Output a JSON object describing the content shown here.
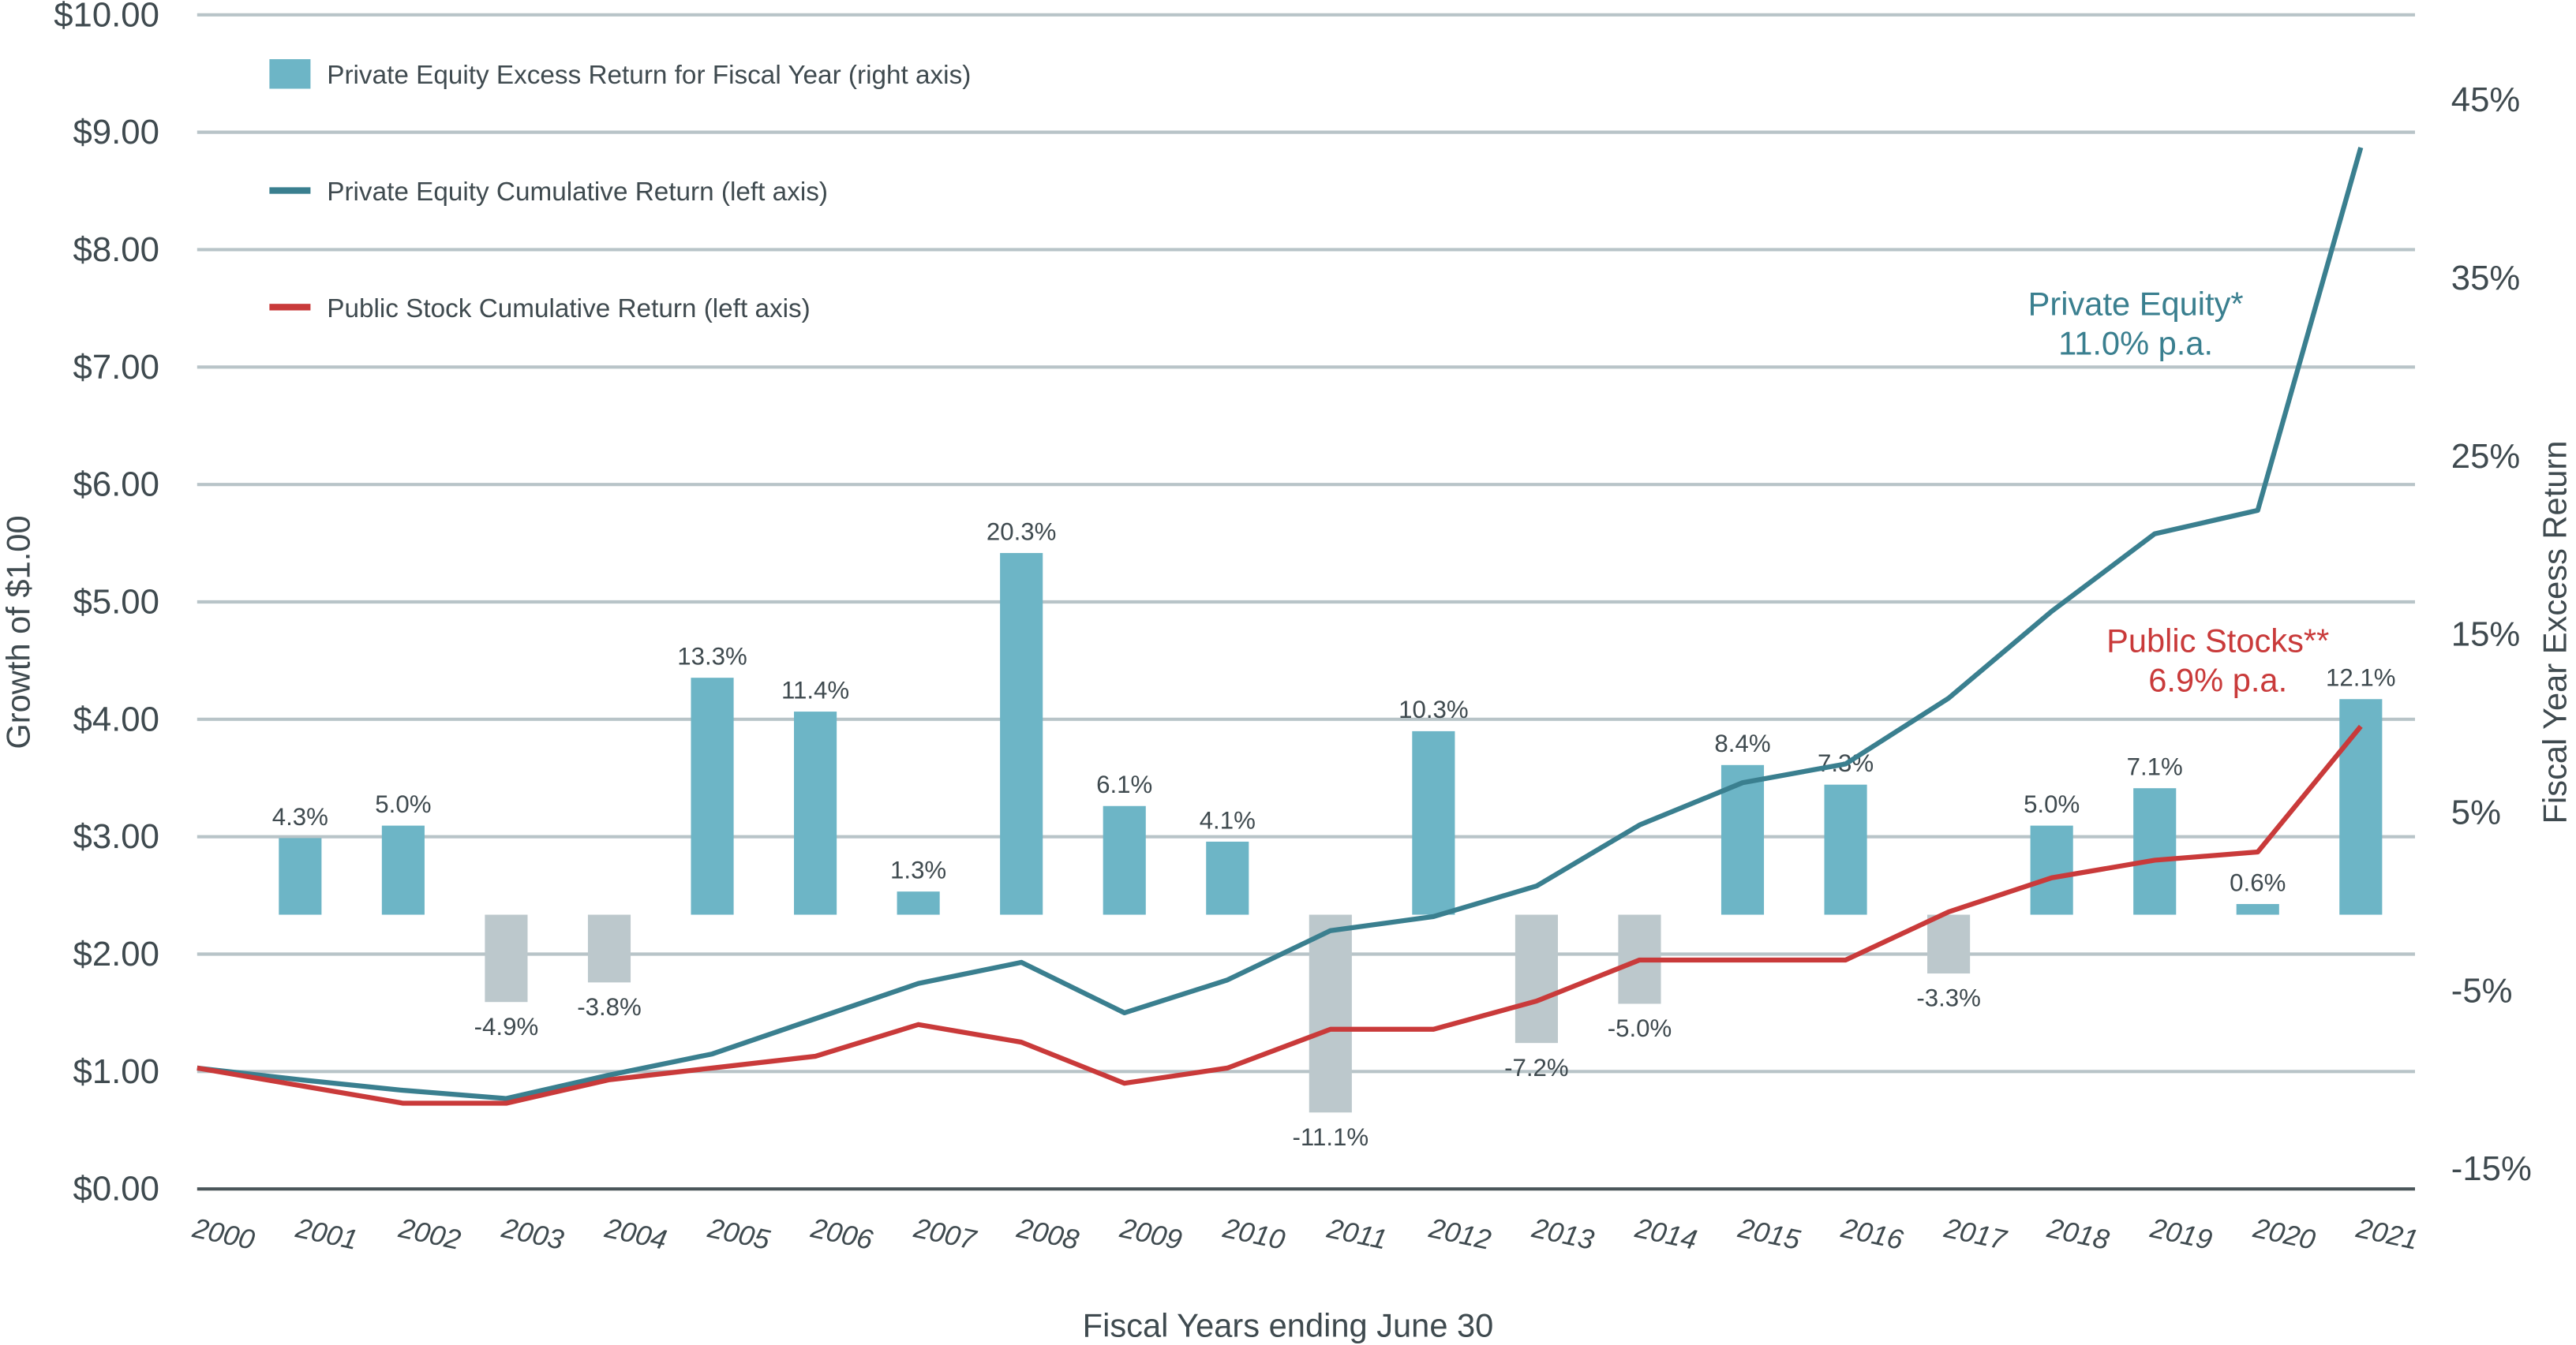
{
  "chart_data": {
    "type": "bar+line",
    "xlabel": "Fiscal Years ending June 30",
    "ylabel_left": "Growth of $1.00",
    "ylabel_right": "Fiscal Year Excess Return",
    "ylim_left": [
      0,
      10
    ],
    "ylim_right": [
      -15,
      50
    ],
    "grid": true,
    "left_ticks": [
      "$0.00",
      "$1.00",
      "$2.00",
      "$3.00",
      "$4.00",
      "$5.00",
      "$6.00",
      "$7.00",
      "$8.00",
      "$9.00",
      "$10.00"
    ],
    "right_ticks": [
      "-15%",
      "-5%",
      "5%",
      "15%",
      "25%",
      "35%",
      "45%"
    ],
    "categories": [
      "2000",
      "2001",
      "2002",
      "2003",
      "2004",
      "2005",
      "2006",
      "2007",
      "2008",
      "2009",
      "2010",
      "2011",
      "2012",
      "2013",
      "2014",
      "2015",
      "2016",
      "2017",
      "2018",
      "2019",
      "2020",
      "2021"
    ],
    "legend": {
      "placement": "top-left",
      "items": [
        {
          "label": "Private Equity Excess Return for Fiscal Year (right axis)",
          "kind": "bar",
          "color": "#6db5c6"
        },
        {
          "label": "Private Equity Cumulative Return (left axis)",
          "kind": "line",
          "color": "#3a7f8f"
        },
        {
          "label": "Public Stock Cumulative Return (left axis)",
          "kind": "line",
          "color": "#c93a3a"
        }
      ]
    },
    "bars": {
      "name": "Private Equity Excess Return for Fiscal Year (right axis)",
      "axis": "right",
      "values": [
        null,
        4.3,
        5.0,
        -4.9,
        -3.8,
        13.3,
        11.4,
        1.3,
        20.3,
        6.1,
        4.1,
        -11.1,
        10.3,
        -7.2,
        -5.0,
        8.4,
        7.3,
        -3.3,
        5.0,
        7.1,
        0.6,
        12.1
      ],
      "labels": [
        "",
        "4.3%",
        "5.0%",
        "-4.9%",
        "-3.8%",
        "13.3%",
        "11.4%",
        "1.3%",
        "20.3%",
        "6.1%",
        "4.1%",
        "-11.1%",
        "10.3%",
        "-7.2%",
        "-5.0%",
        "8.4%",
        "7.3%",
        "-3.3%",
        "5.0%",
        "7.1%",
        "0.6%",
        "12.1%"
      ],
      "positive_color": "#6db5c6",
      "negative_color": "#bcc8cc"
    },
    "series": [
      {
        "name": "Private Equity Cumulative Return (left axis)",
        "axis": "left",
        "color": "#3a7f8f",
        "values": [
          1.03,
          0.93,
          0.84,
          0.77,
          0.97,
          1.15,
          1.45,
          1.75,
          1.93,
          1.5,
          1.78,
          2.2,
          2.32,
          2.58,
          3.1,
          3.46,
          3.62,
          4.18,
          4.92,
          5.58,
          5.78,
          8.87
        ]
      },
      {
        "name": "Public Stock Cumulative Return (left axis)",
        "axis": "left",
        "color": "#c93a3a",
        "values": [
          1.03,
          0.88,
          0.73,
          0.73,
          0.93,
          1.03,
          1.13,
          1.4,
          1.25,
          0.9,
          1.03,
          1.36,
          1.36,
          1.6,
          1.95,
          1.95,
          1.95,
          2.36,
          2.65,
          2.8,
          2.87,
          3.94
        ]
      }
    ],
    "annotations": [
      {
        "series": "Private Equity",
        "lines": [
          "Private Equity*",
          "11.0% p.a."
        ],
        "color": "#3a7f8f"
      },
      {
        "series": "Public Stocks",
        "lines": [
          "Public Stocks**",
          "6.9% p.a."
        ],
        "color": "#c93a3a"
      }
    ]
  }
}
